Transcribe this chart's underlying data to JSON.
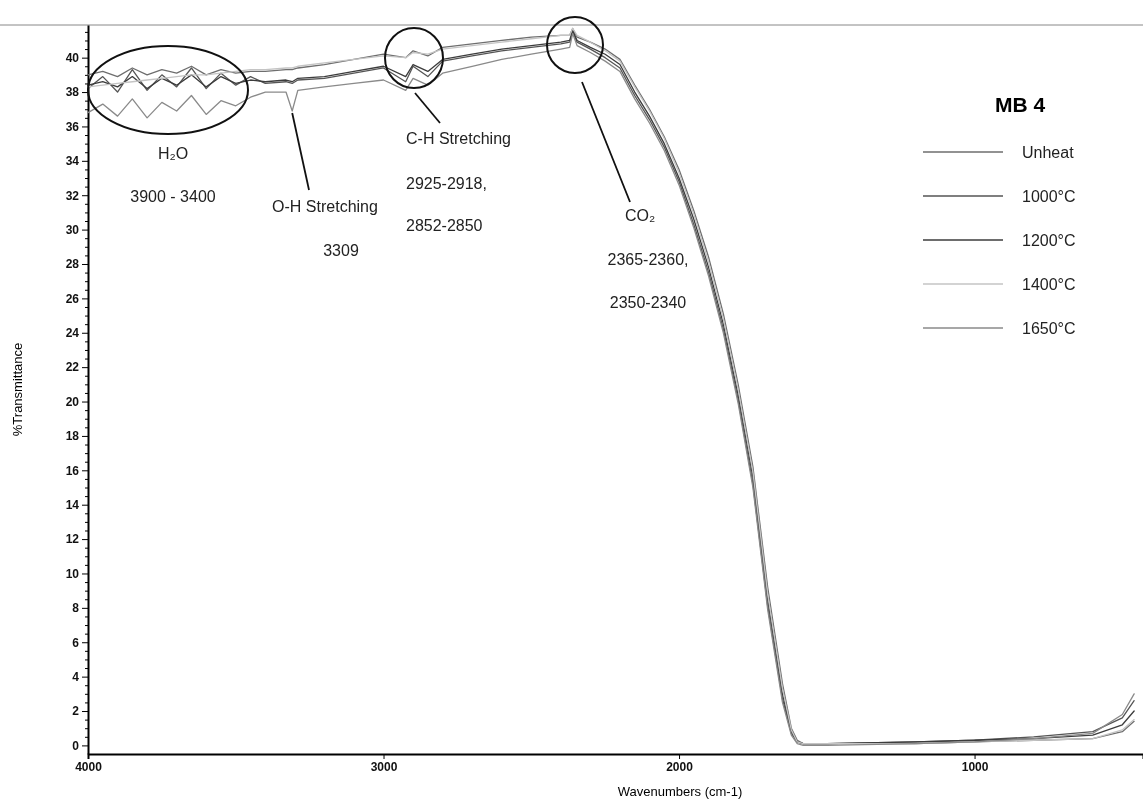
{
  "chart_data": {
    "type": "line",
    "xlabel": "Wavenumbers (cm-1)",
    "ylabel": "%Transmittance",
    "legend_title": "MB 4",
    "legend": "top right",
    "grid": false,
    "marker": "none",
    "line_style": "solid",
    "xlim": [
      4000,
      430
    ],
    "xticks": [
      4000,
      3000,
      2000,
      1000
    ],
    "ylim": [
      -0.5,
      41.9
    ],
    "yticks": [
      0,
      {
        "value": 0.5,
        "label": null
      },
      {
        "value": 1,
        "label": null
      },
      {
        "value": 1.5,
        "label": null
      },
      2,
      {
        "value": 2.5,
        "label": null
      },
      {
        "value": 3,
        "label": null
      },
      {
        "value": 3.5,
        "label": null
      },
      4,
      {
        "value": 4.5,
        "label": null
      },
      {
        "value": 5,
        "label": null
      },
      {
        "value": 5.5,
        "label": null
      },
      6,
      {
        "value": 6.5,
        "label": null
      },
      {
        "value": 7,
        "label": null
      },
      {
        "value": 7.5,
        "label": null
      },
      8,
      {
        "value": 8.5,
        "label": null
      },
      {
        "value": 9,
        "label": null
      },
      {
        "value": 9.5,
        "label": null
      },
      10,
      {
        "value": 10.5,
        "label": null
      },
      {
        "value": 11,
        "label": null
      },
      {
        "value": 11.5,
        "label": null
      },
      12,
      {
        "value": 12.5,
        "label": null
      },
      {
        "value": 13,
        "label": null
      },
      {
        "value": 13.5,
        "label": null
      },
      14,
      {
        "value": 14.5,
        "label": null
      },
      {
        "value": 15,
        "label": null
      },
      {
        "value": 15.5,
        "label": null
      },
      16,
      {
        "value": 16.5,
        "label": null
      },
      {
        "value": 17,
        "label": null
      },
      {
        "value": 17.5,
        "label": null
      },
      18,
      {
        "value": 18.5,
        "label": null
      },
      {
        "value": 19,
        "label": null
      },
      {
        "value": 19.5,
        "label": null
      },
      20,
      {
        "value": 20.5,
        "label": null
      },
      {
        "value": 21,
        "label": null
      },
      {
        "value": 21.5,
        "label": null
      },
      22,
      {
        "value": 22.5,
        "label": null
      },
      {
        "value": 23,
        "label": null
      },
      {
        "value": 23.5,
        "label": null
      },
      24,
      {
        "value": 24.5,
        "label": null
      },
      {
        "value": 25,
        "label": null
      },
      {
        "value": 25.5,
        "label": null
      },
      26,
      {
        "value": 26.5,
        "label": null
      },
      {
        "value": 27,
        "label": null
      },
      {
        "value": 27.5,
        "label": null
      },
      28,
      {
        "value": 28.5,
        "label": null
      },
      {
        "value": 29,
        "label": null
      },
      {
        "value": 29.5,
        "label": null
      },
      30,
      {
        "value": 30.5,
        "label": null
      },
      {
        "value": 31,
        "label": null
      },
      {
        "value": 31.5,
        "label": null
      },
      32,
      {
        "value": 32.5,
        "label": null
      },
      {
        "value": 33,
        "label": null
      },
      {
        "value": 33.5,
        "label": null
      },
      34,
      {
        "value": 34.5,
        "label": null
      },
      {
        "value": 35,
        "label": null
      },
      {
        "value": 35.5,
        "label": null
      },
      36,
      {
        "value": 36.5,
        "label": null
      },
      {
        "value": 37,
        "label": null
      },
      {
        "value": 37.5,
        "label": null
      },
      38,
      {
        "value": 38.5,
        "label": null
      },
      {
        "value": 39,
        "label": null
      },
      {
        "value": 39.5,
        "label": null
      },
      40,
      {
        "value": 40.5,
        "label": null
      },
      {
        "value": 41,
        "label": null
      },
      {
        "value": 41.5,
        "label": null
      }
    ],
    "x": [
      4000,
      3950,
      3900,
      3850,
      3800,
      3750,
      3700,
      3650,
      3600,
      3550,
      3500,
      3450,
      3400,
      3330,
      3309,
      3290,
      3200,
      3100,
      3000,
      2925,
      2900,
      2850,
      2800,
      2700,
      2600,
      2500,
      2400,
      2370,
      2360,
      2345,
      2300,
      2250,
      2200,
      2150,
      2100,
      2050,
      2000,
      1950,
      1900,
      1850,
      1800,
      1750,
      1700,
      1650,
      1620,
      1600,
      1580,
      1500,
      1200,
      1000,
      800,
      600,
      500,
      460
    ],
    "series": [
      {
        "name": "Unheat",
        "color": "#6e6e6e",
        "values": [
          39.0,
          39.2,
          38.9,
          39.4,
          39.0,
          39.3,
          39.1,
          39.5,
          39.0,
          39.3,
          39.1,
          39.2,
          39.2,
          39.3,
          39.3,
          39.4,
          39.6,
          39.9,
          40.2,
          40.0,
          40.4,
          40.1,
          40.6,
          40.8,
          41.0,
          41.2,
          41.3,
          41.3,
          41.7,
          41.2,
          40.9,
          40.5,
          39.9,
          38.4,
          37.0,
          35.4,
          33.5,
          31.1,
          28.4,
          25.1,
          21.0,
          16.2,
          9.2,
          3.6,
          1.0,
          0.3,
          0.1,
          0.1,
          0.1,
          0.2,
          0.3,
          0.4,
          0.8,
          1.4
        ]
      },
      {
        "name": "1000°C",
        "color": "#555555",
        "values": [
          38.2,
          38.9,
          38.0,
          39.3,
          38.1,
          39.0,
          38.3,
          39.4,
          38.2,
          39.1,
          38.4,
          38.9,
          38.5,
          38.6,
          38.5,
          38.7,
          38.8,
          39.1,
          39.4,
          38.6,
          39.5,
          38.9,
          39.8,
          40.1,
          40.4,
          40.6,
          40.8,
          40.9,
          41.5,
          40.9,
          40.5,
          40.0,
          39.4,
          37.8,
          36.4,
          34.8,
          32.8,
          30.3,
          27.5,
          24.2,
          20.1,
          15.2,
          8.1,
          2.7,
          0.7,
          0.2,
          0.1,
          0.1,
          0.2,
          0.3,
          0.5,
          0.8,
          1.6,
          2.6
        ]
      },
      {
        "name": "1200°C",
        "color": "#3c3c3c",
        "values": [
          38.4,
          38.6,
          38.3,
          38.9,
          38.2,
          38.8,
          38.4,
          39.0,
          38.3,
          38.9,
          38.5,
          38.7,
          38.6,
          38.7,
          38.6,
          38.8,
          38.9,
          39.2,
          39.5,
          38.9,
          39.6,
          39.2,
          39.9,
          40.2,
          40.5,
          40.7,
          40.9,
          41.0,
          41.6,
          41.0,
          40.6,
          40.2,
          39.6,
          38.0,
          36.6,
          35.0,
          33.0,
          30.6,
          27.8,
          24.5,
          20.4,
          15.6,
          8.5,
          3.0,
          0.8,
          0.2,
          0.1,
          0.1,
          0.2,
          0.3,
          0.4,
          0.6,
          1.2,
          2.0
        ]
      },
      {
        "name": "1400°C",
        "color": "#c4c4c4",
        "values": [
          38.3,
          38.4,
          38.5,
          38.6,
          38.7,
          38.8,
          38.9,
          39.0,
          39.0,
          39.1,
          39.2,
          39.3,
          39.3,
          39.4,
          39.4,
          39.5,
          39.7,
          39.9,
          40.1,
          40.0,
          40.3,
          40.2,
          40.5,
          40.7,
          40.9,
          41.1,
          41.3,
          41.3,
          41.7,
          41.3,
          40.9,
          40.4,
          39.8,
          38.3,
          36.9,
          35.3,
          33.3,
          30.9,
          28.1,
          24.8,
          20.7,
          15.9,
          8.8,
          3.3,
          0.9,
          0.2,
          0.1,
          0.1,
          0.1,
          0.2,
          0.3,
          0.4,
          0.9,
          1.5
        ]
      },
      {
        "name": "1650°C",
        "color": "#8a8a8a",
        "values": [
          36.8,
          37.3,
          36.6,
          37.6,
          36.5,
          37.4,
          36.9,
          37.8,
          36.7,
          37.5,
          37.2,
          37.7,
          38.0,
          38.0,
          36.9,
          38.1,
          38.3,
          38.5,
          38.7,
          38.1,
          38.8,
          38.4,
          39.1,
          39.5,
          39.9,
          40.2,
          40.5,
          40.6,
          41.4,
          40.7,
          40.3,
          39.8,
          39.2,
          37.6,
          36.2,
          34.6,
          32.6,
          30.1,
          27.3,
          24.0,
          19.9,
          15.0,
          7.9,
          2.5,
          0.6,
          0.1,
          0.0,
          0.0,
          0.1,
          0.2,
          0.4,
          0.7,
          1.8,
          3.0
        ]
      }
    ],
    "annotations": [
      "H₂O",
      "3900 - 3400",
      {
        "text": "O-H Stretching",
        "x": 3309,
        "y": 36.9
      },
      "3309",
      "C-H Stretching",
      "2925-2918,",
      "2852-2850",
      "CO₂",
      "2365-2360,",
      "2350-2340"
    ]
  }
}
